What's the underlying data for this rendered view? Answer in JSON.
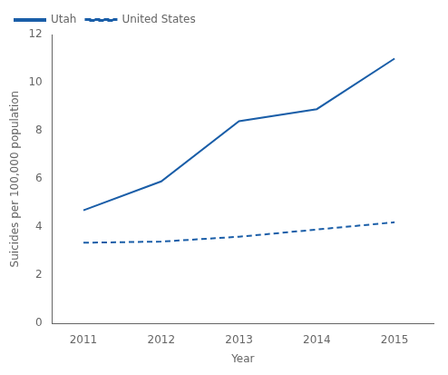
{
  "chart_data": {
    "type": "line",
    "x": [
      2011,
      2012,
      2013,
      2014,
      2015
    ],
    "series": [
      {
        "name": "Utah",
        "color": "#1a5ea8",
        "line_style": "solid",
        "values": [
          4.7,
          5.9,
          8.4,
          8.9,
          11.0
        ]
      },
      {
        "name": "United States",
        "color": "#1a5ea8",
        "line_style": "dashed",
        "values": [
          3.35,
          3.4,
          3.6,
          3.9,
          4.2
        ]
      }
    ],
    "xlabel": "Year",
    "ylabel": "Suicides per 100,000 population",
    "xlim": [
      2010.6,
      2015.5
    ],
    "xticks": [
      2011,
      2012,
      2013,
      2014,
      2015
    ],
    "ylim": [
      0,
      12
    ],
    "yticks": [
      0,
      2,
      4,
      6,
      8,
      10,
      12
    ],
    "grid": false,
    "legend": "upper left"
  }
}
